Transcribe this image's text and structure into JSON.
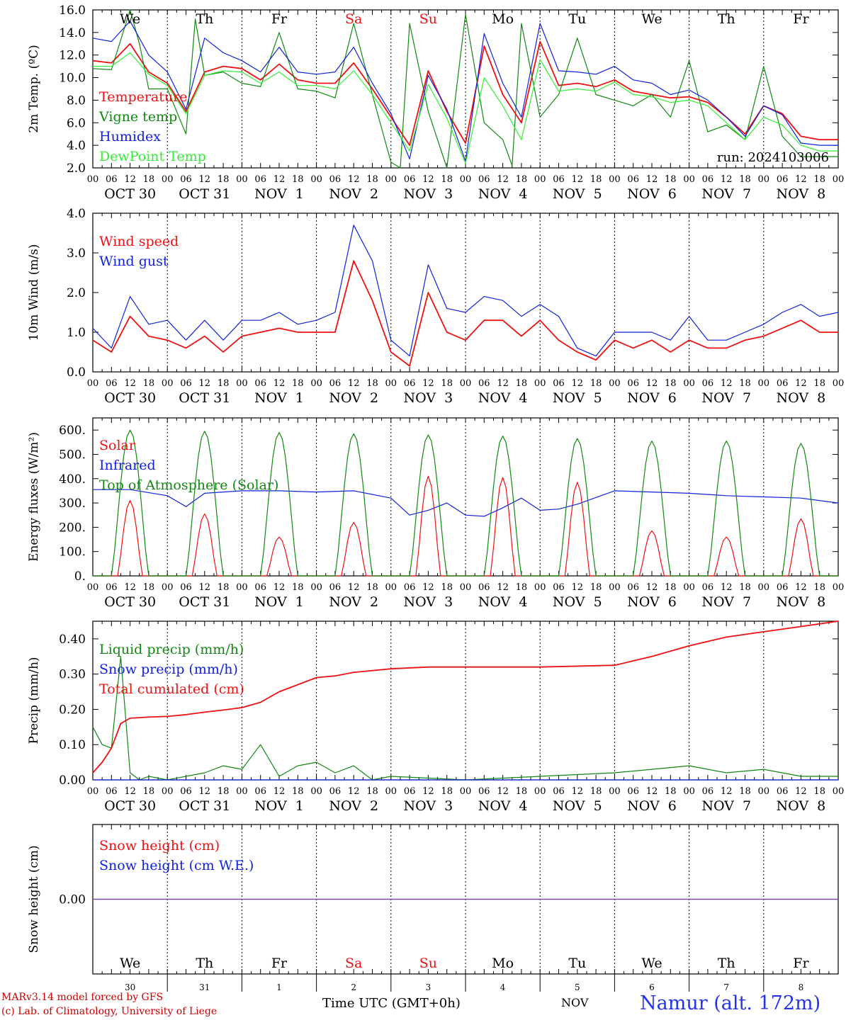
{
  "colors": {
    "red": "#ee1111",
    "green": "#118811",
    "blue": "#1122dd",
    "lightgreen": "#33ee33",
    "purple": "#7744aa"
  },
  "axis": {
    "hour_ticks": [
      "00",
      "06",
      "12",
      "18"
    ],
    "last_tick": "00",
    "date_labels": [
      "OCT 30",
      "OCT 31",
      "NOV  1",
      "NOV  2",
      "NOV  3",
      "NOV  4",
      "NOV  5",
      "NOV  6",
      "NOV  7",
      "NOV  8"
    ],
    "weekdays": [
      {
        "label": "We",
        "weekend": false
      },
      {
        "label": "Th",
        "weekend": false
      },
      {
        "label": "Fr",
        "weekend": false
      },
      {
        "label": "Sa",
        "weekend": true
      },
      {
        "label": "Su",
        "weekend": true
      },
      {
        "label": "Mo",
        "weekend": false
      },
      {
        "label": "Tu",
        "weekend": false
      },
      {
        "label": "We",
        "weekend": false
      },
      {
        "label": "Th",
        "weekend": false
      },
      {
        "label": "Fr",
        "weekend": false
      }
    ],
    "day_numbers": [
      "30",
      "31",
      "1",
      "2",
      "3",
      "4",
      "5",
      "6",
      "7",
      "8"
    ]
  },
  "footer": {
    "model_line": "MARv3.14 model forced by GFS",
    "credit_line": "(c) Lab. of Climatology, University of Liege",
    "time_label": "Time UTC (GMT+0h)",
    "month_label": "NOV",
    "station": "Namur (alt. 172m)"
  },
  "chart_data": [
    {
      "type": "line",
      "ylabel": "2m Temp. (ºC)",
      "ylim": [
        2,
        16
      ],
      "yticks": [
        "2.0",
        "4.0",
        "6.0",
        "8.0",
        "10.0",
        "12.0",
        "14.0",
        "16.0"
      ],
      "annotation": "run: 2024103006",
      "x_unit": "hours since Oct 30 00 UTC",
      "series": [
        {
          "name": "Temperature",
          "color": "red",
          "x": [
            0,
            6,
            12,
            18,
            24,
            30,
            36,
            42,
            48,
            54,
            60,
            66,
            72,
            78,
            84,
            90,
            96,
            102,
            108,
            114,
            120,
            126,
            132,
            138,
            144,
            150,
            156,
            162,
            168,
            174,
            180,
            186,
            192,
            198,
            204,
            210,
            216,
            222,
            228,
            234,
            240
          ],
          "y": [
            11.5,
            11.3,
            13.0,
            10.5,
            9.5,
            7.0,
            10.5,
            11.0,
            10.8,
            9.8,
            11.2,
            9.8,
            9.5,
            9.5,
            11.3,
            9.0,
            6.5,
            4.0,
            10.6,
            7.0,
            4.2,
            12.8,
            8.5,
            6.0,
            13.2,
            9.3,
            9.5,
            9.2,
            9.8,
            8.8,
            8.5,
            8.2,
            8.3,
            7.8,
            6.5,
            5.0,
            7.5,
            6.8,
            4.8,
            4.5,
            4.5
          ]
        },
        {
          "name": "Vigne temp",
          "color": "green",
          "x": [
            0,
            6,
            12,
            15,
            18,
            24,
            30,
            33,
            36,
            42,
            48,
            54,
            60,
            66,
            72,
            78,
            84,
            90,
            96,
            99,
            102,
            108,
            114,
            120,
            126,
            132,
            135,
            138,
            144,
            150,
            156,
            162,
            168,
            174,
            180,
            186,
            192,
            198,
            204,
            210,
            216,
            222,
            228,
            234,
            240
          ],
          "y": [
            10.8,
            10.7,
            16.0,
            13.0,
            9.0,
            9.0,
            5.0,
            15.2,
            10.2,
            10.5,
            9.5,
            9.2,
            14.0,
            9.0,
            8.8,
            8.2,
            14.8,
            8.5,
            2.5,
            1.8,
            14.8,
            7.0,
            2.0,
            15.6,
            6.0,
            4.5,
            2.2,
            14.8,
            6.5,
            8.5,
            13.5,
            8.5,
            8.0,
            7.5,
            8.5,
            6.5,
            11.5,
            5.2,
            5.8,
            4.5,
            11.0,
            4.8,
            3.0,
            3.0,
            3.0
          ]
        },
        {
          "name": "Humidex",
          "color": "blue",
          "x": [
            0,
            6,
            12,
            18,
            24,
            30,
            36,
            42,
            48,
            54,
            60,
            66,
            72,
            78,
            84,
            90,
            96,
            102,
            108,
            114,
            120,
            126,
            132,
            138,
            144,
            150,
            156,
            162,
            168,
            174,
            180,
            186,
            192,
            198,
            204,
            210,
            216,
            222,
            228,
            234,
            240
          ],
          "y": [
            13.5,
            13.2,
            15.0,
            12.0,
            10.5,
            7.2,
            13.5,
            12.2,
            11.5,
            10.5,
            12.7,
            10.5,
            10.3,
            10.5,
            12.7,
            9.5,
            6.8,
            2.8,
            10.2,
            7.2,
            2.6,
            13.9,
            9.5,
            6.5,
            14.8,
            10.6,
            10.5,
            10.3,
            11.0,
            9.8,
            9.5,
            8.5,
            8.9,
            8.0,
            6.5,
            4.8,
            7.5,
            6.7,
            4.2,
            4.0,
            4.0
          ]
        },
        {
          "name": "DewPoint Temp",
          "color": "lightgreen",
          "x": [
            0,
            6,
            12,
            18,
            24,
            30,
            36,
            42,
            48,
            54,
            60,
            66,
            72,
            78,
            84,
            90,
            96,
            102,
            108,
            114,
            120,
            126,
            132,
            138,
            144,
            150,
            156,
            162,
            168,
            174,
            180,
            186,
            192,
            198,
            204,
            210,
            216,
            222,
            228,
            234,
            240
          ],
          "y": [
            11.0,
            11.0,
            12.2,
            10.3,
            9.3,
            6.8,
            10.2,
            10.6,
            10.5,
            9.5,
            10.5,
            9.3,
            9.3,
            9.0,
            10.6,
            8.5,
            6.0,
            3.5,
            9.4,
            6.4,
            2.4,
            10.0,
            7.5,
            4.5,
            11.6,
            8.8,
            9.0,
            8.8,
            9.6,
            8.5,
            8.3,
            7.8,
            8.0,
            7.5,
            6.0,
            4.5,
            6.5,
            5.8,
            4.0,
            3.5,
            3.5
          ]
        }
      ]
    },
    {
      "type": "line",
      "ylabel": "10m Wind (m/s)",
      "ylim": [
        0,
        4
      ],
      "yticks": [
        "0.0",
        "1.0",
        "2.0",
        "3.0",
        "4.0"
      ],
      "series": [
        {
          "name": "Wind speed",
          "color": "red",
          "x": [
            0,
            6,
            12,
            18,
            24,
            30,
            36,
            42,
            48,
            54,
            60,
            66,
            72,
            78,
            84,
            90,
            96,
            102,
            108,
            114,
            120,
            126,
            132,
            138,
            144,
            150,
            156,
            162,
            168,
            174,
            180,
            186,
            192,
            198,
            204,
            210,
            216,
            222,
            228,
            234,
            240
          ],
          "y": [
            0.8,
            0.5,
            1.4,
            0.9,
            0.8,
            0.6,
            0.9,
            0.5,
            0.9,
            1.0,
            1.1,
            1.0,
            1.0,
            1.0,
            2.8,
            1.8,
            0.5,
            0.15,
            2.0,
            1.0,
            0.8,
            1.3,
            1.3,
            0.9,
            1.3,
            0.8,
            0.5,
            0.3,
            0.8,
            0.6,
            0.8,
            0.5,
            0.8,
            0.6,
            0.6,
            0.8,
            0.9,
            1.1,
            1.3,
            1.0,
            1.0
          ]
        },
        {
          "name": "Wind gust",
          "color": "blue",
          "x": [
            0,
            6,
            12,
            18,
            24,
            30,
            36,
            42,
            48,
            54,
            60,
            66,
            72,
            78,
            84,
            90,
            96,
            102,
            108,
            114,
            120,
            126,
            132,
            138,
            144,
            150,
            156,
            162,
            168,
            174,
            180,
            186,
            192,
            198,
            204,
            210,
            216,
            222,
            228,
            234,
            240
          ],
          "y": [
            1.1,
            0.6,
            1.9,
            1.2,
            1.3,
            0.8,
            1.3,
            0.8,
            1.3,
            1.3,
            1.5,
            1.2,
            1.3,
            1.5,
            3.7,
            2.8,
            0.8,
            0.4,
            2.7,
            1.6,
            1.5,
            1.9,
            1.8,
            1.4,
            1.7,
            1.4,
            0.6,
            0.4,
            1.0,
            1.0,
            1.0,
            0.8,
            1.4,
            0.8,
            0.8,
            1.0,
            1.2,
            1.5,
            1.7,
            1.4,
            1.5
          ]
        }
      ]
    },
    {
      "type": "line",
      "ylabel": "Energy fluxes (W/m²)",
      "ylim": [
        0,
        650
      ],
      "yticks": [
        "0.",
        "100.",
        "200.",
        "300.",
        "400.",
        "500.",
        "600."
      ],
      "series": [
        {
          "name": "Solar",
          "color": "red",
          "peaks": [
            310,
            255,
            160,
            220,
            410,
            405,
            385,
            185,
            160,
            235
          ]
        },
        {
          "name": "Infrared",
          "color": "blue",
          "x": [
            0,
            12,
            24,
            30,
            36,
            48,
            60,
            72,
            84,
            96,
            102,
            108,
            114,
            120,
            126,
            132,
            138,
            144,
            150,
            156,
            168,
            180,
            192,
            204,
            216,
            228,
            240
          ],
          "y": [
            355,
            355,
            330,
            285,
            340,
            350,
            350,
            345,
            350,
            320,
            250,
            270,
            300,
            250,
            245,
            280,
            320,
            270,
            275,
            295,
            350,
            345,
            340,
            330,
            325,
            320,
            300
          ]
        },
        {
          "name": "Top of Atmosphere (Solar)",
          "color": "green",
          "peaks": [
            600,
            595,
            590,
            585,
            580,
            575,
            565,
            555,
            555,
            545
          ]
        }
      ]
    },
    {
      "type": "line",
      "ylabel": "Precip (mm/h)",
      "ylim": [
        0,
        0.45
      ],
      "yticks": [
        "0.00",
        "0.10",
        "0.20",
        "0.30",
        "0.40"
      ],
      "series": [
        {
          "name": "Liquid precip (mm/h)",
          "color": "green",
          "x": [
            0,
            3,
            6,
            9,
            12,
            15,
            18,
            24,
            30,
            36,
            42,
            48,
            54,
            60,
            66,
            72,
            78,
            84,
            90,
            96,
            120,
            168,
            180,
            192,
            204,
            216,
            228,
            240
          ],
          "y": [
            0.15,
            0.1,
            0.09,
            0.35,
            0.02,
            0.0,
            0.01,
            0.0,
            0.01,
            0.02,
            0.04,
            0.03,
            0.1,
            0.01,
            0.04,
            0.05,
            0.02,
            0.04,
            0.0,
            0.01,
            0.0,
            0.02,
            0.03,
            0.04,
            0.02,
            0.03,
            0.01,
            0.01
          ]
        },
        {
          "name": "Snow precip (mm/h)",
          "color": "blue",
          "x": [
            0,
            240
          ],
          "y": [
            0,
            0
          ]
        },
        {
          "name": "Total cumulated (cm)",
          "color": "red",
          "x": [
            0,
            3,
            6,
            9,
            12,
            18,
            24,
            30,
            36,
            42,
            48,
            54,
            60,
            66,
            72,
            78,
            84,
            96,
            108,
            120,
            144,
            168,
            180,
            192,
            204,
            216,
            228,
            240
          ],
          "y": [
            0.02,
            0.05,
            0.09,
            0.16,
            0.175,
            0.178,
            0.18,
            0.185,
            0.192,
            0.198,
            0.205,
            0.22,
            0.25,
            0.27,
            0.29,
            0.295,
            0.305,
            0.315,
            0.32,
            0.32,
            0.32,
            0.325,
            0.35,
            0.38,
            0.405,
            0.42,
            0.435,
            0.45
          ]
        }
      ]
    },
    {
      "type": "line",
      "ylabel": "Snow height (cm)",
      "ylim": [
        -1,
        1
      ],
      "yticks": [
        "0.00"
      ],
      "series": [
        {
          "name": "Snow height (cm)",
          "color": "red",
          "x": [
            0,
            240
          ],
          "y": [
            0,
            0
          ]
        },
        {
          "name": "Snow height (cm W.E.)",
          "color": "blue",
          "x": [
            0,
            240
          ],
          "y": [
            0,
            0
          ]
        }
      ]
    }
  ]
}
